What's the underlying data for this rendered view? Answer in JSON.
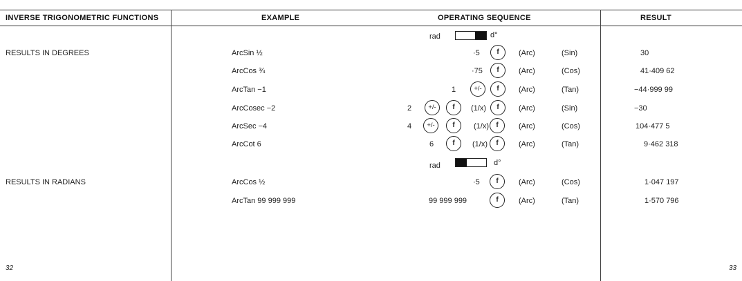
{
  "headers": {
    "functions": "INVERSE TRIGONOMETRIC FUNCTIONS",
    "example": "EXAMPLE",
    "sequence": "OPERATING SEQUENCE",
    "result": "RESULT"
  },
  "sections": {
    "degrees": "RESULTS IN DEGREES",
    "radians": "RESULTS IN RADIANS"
  },
  "switch": {
    "rad": "rad",
    "deg": "d°",
    "first_position": "deg",
    "second_position": "rad"
  },
  "keys": {
    "f": "f",
    "pm": "+/-",
    "recip": "(1/x)",
    "arc": "(Arc)"
  },
  "rows": [
    {
      "example": "ArcSin ½",
      "inputs": [
        "·5"
      ],
      "fn": "(Sin)",
      "result": "30"
    },
    {
      "example": "ArcCos ¾",
      "inputs": [
        "·75"
      ],
      "fn": "(Cos)",
      "result": "41·409 62"
    },
    {
      "example": "ArcTan −1",
      "inputs": [
        "1"
      ],
      "fn": "(Tan)",
      "result": "−44·999 99"
    },
    {
      "example": "ArcCosec −2",
      "inputs": [
        "2"
      ],
      "fn": "(Sin)",
      "result": "−30"
    },
    {
      "example": "ArcSec −4",
      "inputs": [
        "4"
      ],
      "fn": "(Cos)",
      "result": "104·477 5"
    },
    {
      "example": "ArcCot 6",
      "inputs": [
        "6"
      ],
      "fn": "(Tan)",
      "result": "9·462 318"
    },
    {
      "example": "ArcCos ½",
      "inputs": [
        "·5"
      ],
      "fn": "(Cos)",
      "result": "1·047 197"
    },
    {
      "example": "ArcTan 99 999 999",
      "inputs": [
        "99 999 999"
      ],
      "fn": "(Tan)",
      "result": "1·570 796"
    }
  ],
  "page_numbers": {
    "left": "32",
    "right": "33"
  }
}
